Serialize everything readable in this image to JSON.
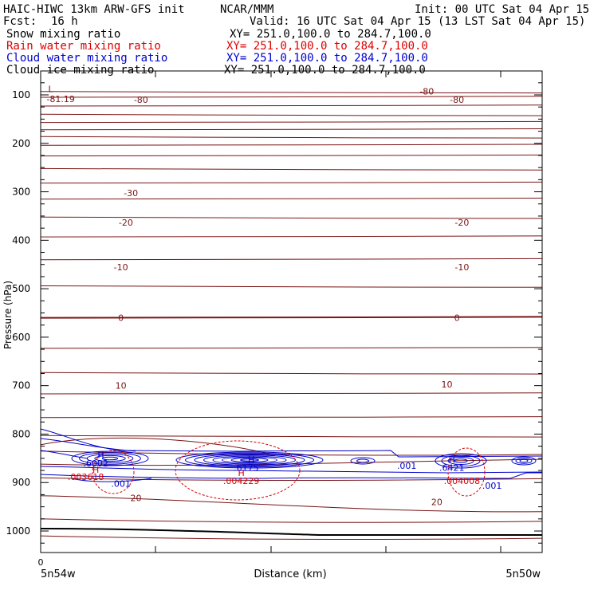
{
  "header": {
    "title": "HAIC-HIWC 13km ARW-GFS init",
    "org": "NCAR/MMM",
    "init": "Init: 00 UTC Sat 04 Apr 15",
    "fcst_label": "Fcst:",
    "fcst_value": "16 h",
    "valid": "Valid: 16 UTC Sat 04 Apr 15 (13 LST Sat 04 Apr 15)"
  },
  "fields": [
    {
      "name": "Snow mixing ratio",
      "xy": "XY= 251.0,100.0 to 284.7,100.0",
      "color": "#000000"
    },
    {
      "name": "Rain water mixing ratio",
      "xy": "XY= 251.0,100.0 to 284.7,100.0",
      "color": "#dd0000"
    },
    {
      "name": "Cloud water mixing ratio",
      "xy": "XY= 251.0,100.0 to 284.7,100.0",
      "color": "#0000cc"
    },
    {
      "name": "Cloud ice mixing ratio",
      "xy": "XY= 251.0,100.0 to 284.7,100.0",
      "color": "#000000"
    }
  ],
  "chart_data": {
    "type": "cross-section contour",
    "ylabel": "Pressure (hPa)",
    "xlabel": "Distance (km)",
    "x_start_label": "5n54w",
    "x_end_label": "5n50w",
    "x_tick_labels": [
      "0"
    ],
    "y_ticks": [
      100,
      200,
      300,
      400,
      500,
      600,
      700,
      800,
      900,
      1000
    ],
    "ylim_hpa": [
      1050,
      50
    ],
    "colors": {
      "temperature": "#7a1515",
      "cloud_water": "#0000cc",
      "rain_water": "#dd0000",
      "ground": "#000000"
    },
    "temperature_labels": [
      {
        "text": "-81.19",
        "x": 0.04,
        "p": 108
      },
      {
        "text": "L",
        "x": 0.02,
        "p": 88
      },
      {
        "text": "-80",
        "x": 0.2,
        "p": 110
      },
      {
        "text": "-80",
        "x": 0.77,
        "p": 93
      },
      {
        "text": "-80",
        "x": 0.83,
        "p": 110
      },
      {
        "text": "-30",
        "x": 0.18,
        "p": 302
      },
      {
        "text": "-20",
        "x": 0.17,
        "p": 363
      },
      {
        "text": "-20",
        "x": 0.84,
        "p": 363
      },
      {
        "text": "-10",
        "x": 0.16,
        "p": 455
      },
      {
        "text": "-10",
        "x": 0.84,
        "p": 455
      },
      {
        "text": "0",
        "x": 0.16,
        "p": 560
      },
      {
        "text": "0",
        "x": 0.83,
        "p": 560
      },
      {
        "text": "10",
        "x": 0.16,
        "p": 700
      },
      {
        "text": "10",
        "x": 0.81,
        "p": 697
      },
      {
        "text": "20",
        "x": 0.19,
        "p": 932
      },
      {
        "text": "20",
        "x": 0.79,
        "p": 940
      }
    ],
    "cloud_water_labels": [
      {
        "text": "H",
        "x": 0.12,
        "p": 843
      },
      {
        "text": ".6002",
        "x": 0.11,
        "p": 860
      },
      {
        "text": ".001",
        "x": 0.16,
        "p": 902
      },
      {
        "text": "H",
        "x": 0.42,
        "p": 853
      },
      {
        "text": ".6175",
        "x": 0.41,
        "p": 869
      },
      {
        "text": ".001",
        "x": 0.73,
        "p": 865
      },
      {
        "text": "H",
        "x": 0.82,
        "p": 853
      },
      {
        "text": ".6421",
        "x": 0.82,
        "p": 869
      },
      {
        "text": ".001",
        "x": 0.9,
        "p": 906
      }
    ],
    "rain_water_labels": [
      {
        "text": "H",
        "x": 0.11,
        "p": 873
      },
      {
        "text": ".003618",
        "x": 0.09,
        "p": 888
      },
      {
        "text": "H",
        "x": 0.4,
        "p": 880
      },
      {
        "text": ".004229",
        "x": 0.4,
        "p": 896
      },
      {
        "text": ".004008",
        "x": 0.84,
        "p": 896
      }
    ]
  }
}
